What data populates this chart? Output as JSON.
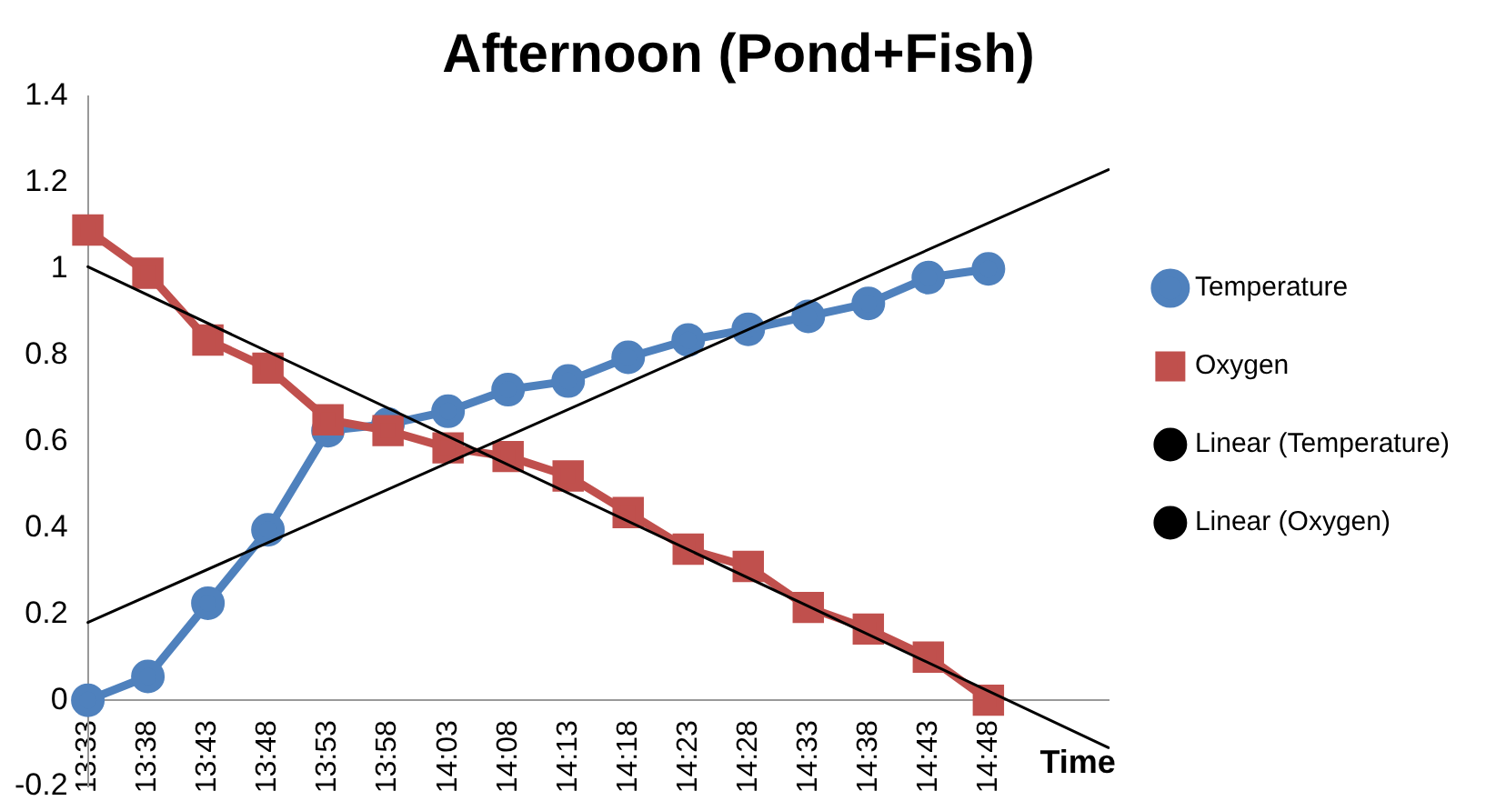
{
  "chart_data": {
    "type": "line",
    "title": "Afternoon (Pond+Fish)",
    "xlabel": "Time",
    "categories": [
      "13:33",
      "13:38",
      "13:43",
      "13:48",
      "13:53",
      "13:58",
      "14:03",
      "14:08",
      "14:13",
      "14:18",
      "14:23",
      "14:28",
      "14:33",
      "14:38",
      "14:43",
      "14:48",
      null,
      null
    ],
    "series": [
      {
        "name": "Temperature",
        "color": "#4f81bd",
        "marker": "circle",
        "values": [
          0,
          0.055,
          0.225,
          0.395,
          0.625,
          0.64,
          0.67,
          0.72,
          0.74,
          0.795,
          0.835,
          0.86,
          0.89,
          0.92,
          0.98,
          1.0,
          null,
          null
        ]
      },
      {
        "name": "Oxygen",
        "color": "#c0504d",
        "marker": "square",
        "values": [
          1.09,
          0.99,
          0.835,
          0.77,
          0.65,
          0.625,
          0.585,
          0.565,
          0.52,
          0.435,
          0.35,
          0.31,
          0.215,
          0.165,
          0.1,
          0.0,
          null,
          null
        ]
      },
      {
        "name": "Linear (Temperature)",
        "color": "#000000",
        "marker": "none",
        "values": [
          0.18,
          null,
          null,
          null,
          null,
          null,
          null,
          null,
          null,
          null,
          null,
          null,
          null,
          null,
          null,
          null,
          null,
          1.23
        ]
      },
      {
        "name": "Linear (Oxygen)",
        "color": "#000000",
        "marker": "none",
        "values": [
          1.005,
          null,
          null,
          null,
          null,
          null,
          null,
          null,
          null,
          null,
          null,
          null,
          null,
          null,
          null,
          null,
          null,
          -0.11
        ]
      }
    ],
    "ylim": [
      -0.2,
      1.4
    ],
    "yticks": [
      -0.2,
      0,
      0.2,
      0.4,
      0.6,
      0.8,
      1,
      1.2,
      1.4
    ],
    "grid": false,
    "legend": "right"
  }
}
